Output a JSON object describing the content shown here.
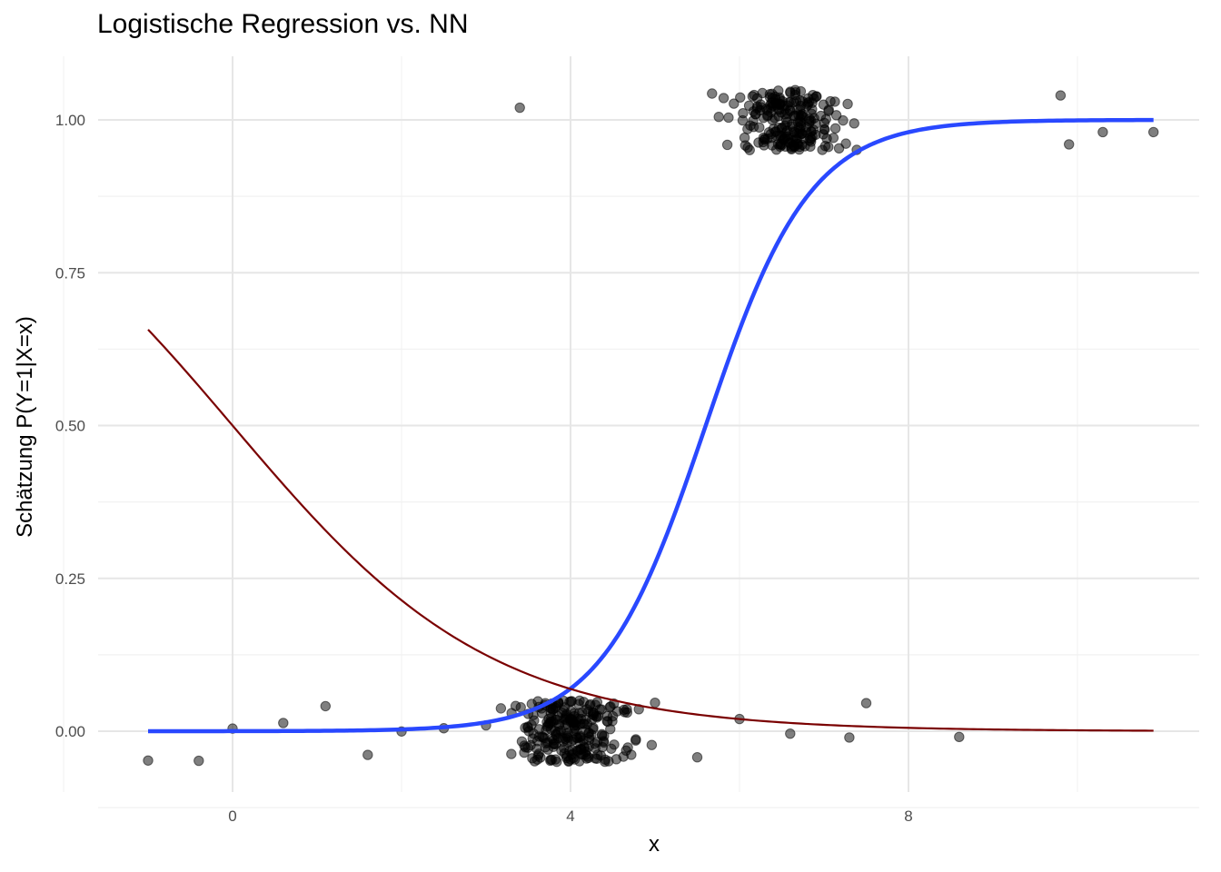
{
  "chart_data": {
    "type": "scatter",
    "title": "Logistische Regression vs. NN",
    "xlabel": "x",
    "ylabel": "Schätzung P(Y=1|X=x)",
    "xlim": [
      -1.5,
      11.3
    ],
    "ylim": [
      -0.1,
      1.1
    ],
    "x_ticks": [
      0,
      4,
      8
    ],
    "x_tick_labels": [
      "0",
      "4",
      "8"
    ],
    "y_ticks": [
      0,
      0.25,
      0.5,
      0.75,
      1.0
    ],
    "y_tick_labels": [
      "0.00",
      "0.25",
      "0.50",
      "0.75",
      "1.00"
    ],
    "grid": true,
    "points_y0": {
      "x_range": [
        -1.0,
        8.6
      ],
      "count": 240,
      "y_jitter": 0.05,
      "note_points": [
        -1.0,
        -0.4,
        0.0,
        0.6,
        1.1,
        1.6,
        2.0,
        2.5,
        3.0,
        3.5,
        4.0,
        4.5,
        5.0,
        5.5,
        6.0,
        6.6,
        7.3,
        7.5,
        8.6
      ]
    },
    "points_y1": {
      "x_range": [
        3.4,
        10.9
      ],
      "count": 220,
      "y_jitter": 0.05
    },
    "series": [
      {
        "name": "",
        "kind": "logistic_curve",
        "color": "#2948ff",
        "midpoint": 5.6,
        "slope": 1.62,
        "x_range": [
          -1.0,
          10.9
        ]
      },
      {
        "name": "",
        "kind": "logistic_curve",
        "color": "#7a0000",
        "midpoint": 0.0,
        "slope": -0.65,
        "x_range": [
          -1.0,
          10.9
        ]
      }
    ],
    "colors": {
      "points": "#000000",
      "grid_major": "#e6e6e6",
      "grid_minor": "#f2f2f2",
      "axis_text": "#4d4d4d"
    }
  }
}
